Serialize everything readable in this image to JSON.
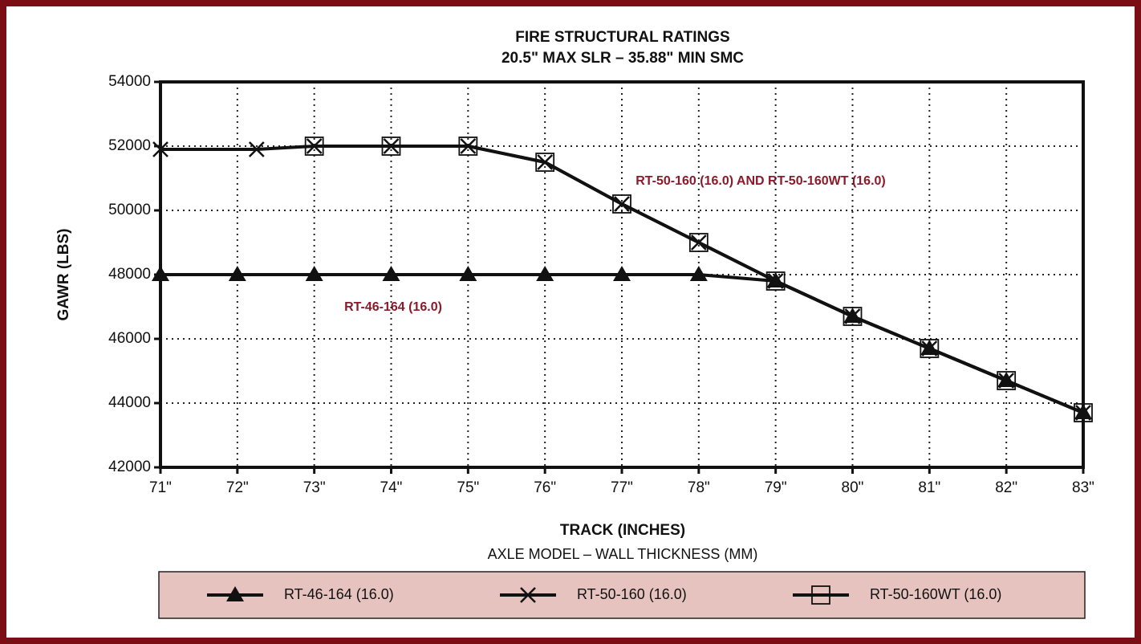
{
  "chart_data": {
    "type": "line",
    "title": "FIRE STRUCTURAL RATINGS",
    "subtitle": "20.5\" MAX SLR – 35.88\" MIN SMC",
    "x_label": "TRACK (INCHES)",
    "y_label": "GAWR (LBS)",
    "legend_title": "AXLE MODEL – WALL THICKNESS (MM)",
    "annotations": [
      "RT-50-160 (16.0) AND RT-50-160WT (16.0)",
      "RT-46-164 (16.0)"
    ],
    "annotation_color": "#8b1a2b",
    "legend_color": "#e6c3bf",
    "xlim": [
      71,
      83
    ],
    "ylim": [
      42000,
      54000
    ],
    "grid": true,
    "xticks": [
      {
        "value": 71,
        "label": "71\""
      },
      {
        "value": 72,
        "label": "72\""
      },
      {
        "value": 73,
        "label": "73\""
      },
      {
        "value": 74,
        "label": "74\""
      },
      {
        "value": 75,
        "label": "75\""
      },
      {
        "value": 76,
        "label": "76\""
      },
      {
        "value": 77,
        "label": "77\""
      },
      {
        "value": 78,
        "label": "78\""
      },
      {
        "value": 79,
        "label": "79\""
      },
      {
        "value": 80,
        "label": "80\""
      },
      {
        "value": 81,
        "label": "81\""
      },
      {
        "value": 82,
        "label": "82\""
      },
      {
        "value": 83,
        "label": "83\""
      }
    ],
    "yticks": [
      42000,
      44000,
      46000,
      48000,
      50000,
      52000,
      54000
    ],
    "series": [
      {
        "name": "RT-46-164 (16.0)",
        "color": "#111111",
        "marker": "triangle",
        "x": [
          71,
          72,
          73,
          74,
          75,
          76,
          77,
          78,
          79,
          80,
          81,
          82,
          83
        ],
        "values": [
          48000,
          48000,
          48000,
          48000,
          48000,
          48000,
          48000,
          48000,
          47800,
          46700,
          45700,
          44700,
          43700
        ]
      },
      {
        "name": "RT-50-160 (16.0)",
        "color": "#111111",
        "marker": "x",
        "x": [
          71,
          72.25,
          73,
          74,
          75,
          76,
          77,
          78,
          79,
          80,
          81,
          82,
          83
        ],
        "values": [
          51900,
          51900,
          52000,
          52000,
          52000,
          51500,
          50200,
          49000,
          47800,
          46700,
          45700,
          44700,
          43700
        ]
      },
      {
        "name": "RT-50-160WT (16.0)",
        "color": "#111111",
        "marker": "square",
        "x": [
          73,
          74,
          75,
          76,
          77,
          78,
          79,
          80,
          81,
          82,
          83
        ],
        "values": [
          52000,
          52000,
          52000,
          51500,
          50200,
          49000,
          47800,
          46700,
          45700,
          44700,
          43700
        ]
      }
    ]
  }
}
